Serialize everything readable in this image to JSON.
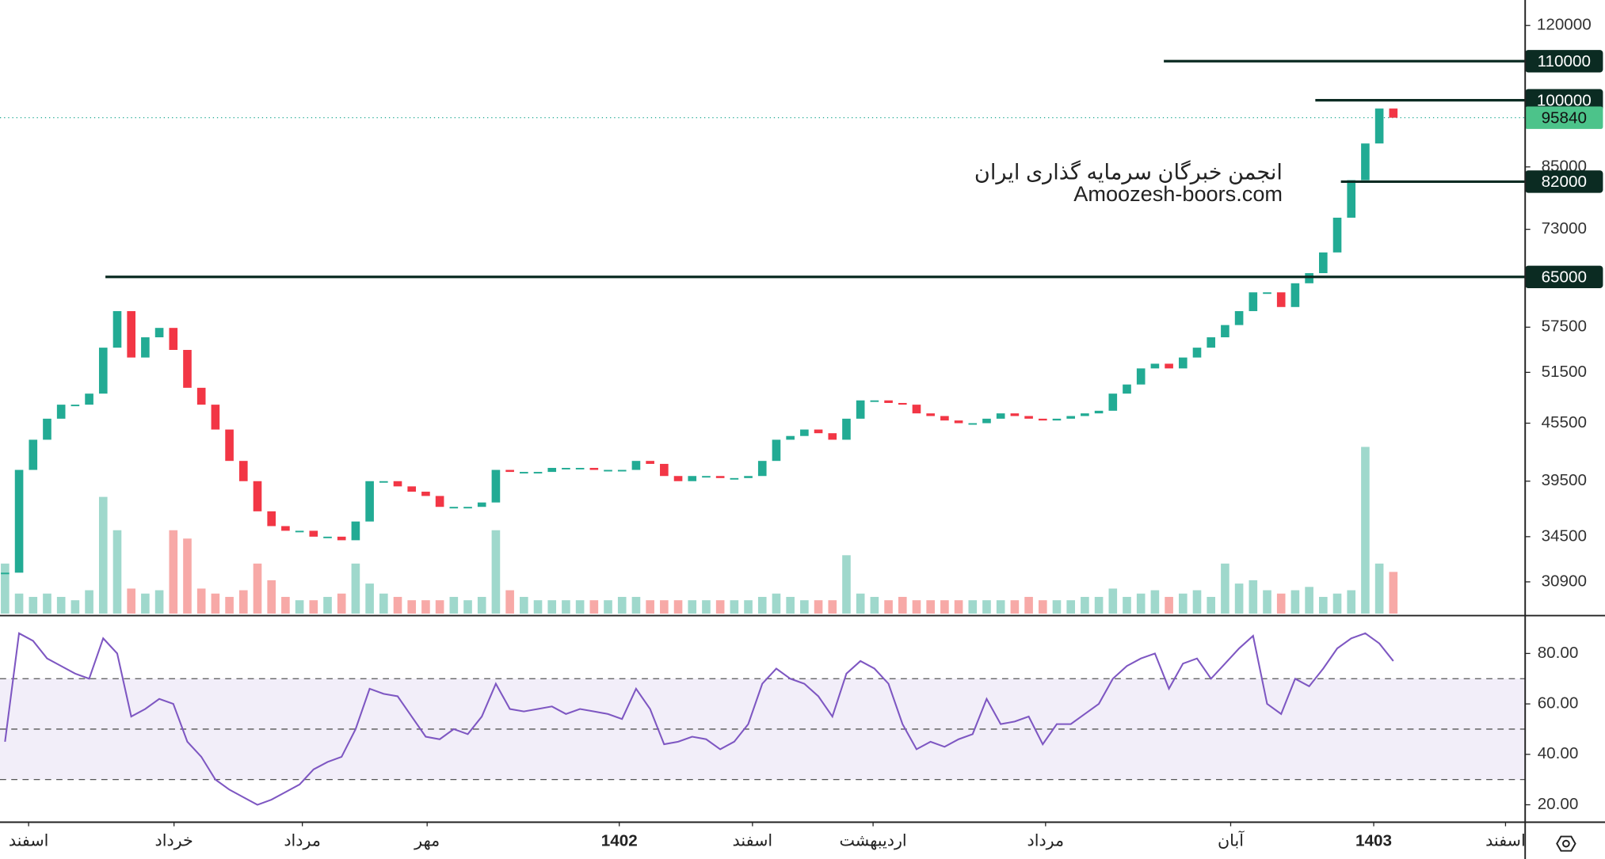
{
  "chart_data": {
    "type": "candlestick",
    "annotations": [
      "انجمن خبرگان سرمایه گذاری ایران",
      "Amoozesh-boors.com"
    ],
    "close": [
      31600,
      40600,
      43700,
      46000,
      47600,
      47600,
      48900,
      54700,
      59800,
      53400,
      56100,
      57400,
      54400,
      49600,
      47600,
      44800,
      41500,
      39500,
      36700,
      35400,
      35000,
      35000,
      34500,
      34500,
      34200,
      35800,
      39500,
      39500,
      39000,
      38500,
      38100,
      37100,
      37100,
      37100,
      37500,
      40600,
      40400,
      40400,
      40400,
      40800,
      40800,
      40800,
      40600,
      40600,
      40600,
      41500,
      41200,
      40000,
      39500,
      40000,
      40000,
      39800,
      39800,
      40000,
      41500,
      43700,
      44100,
      44800,
      44400,
      43700,
      46000,
      48100,
      48100,
      47800,
      47600,
      46600,
      46300,
      45800,
      45500,
      45500,
      46000,
      46600,
      46300,
      46000,
      45800,
      46000,
      46300,
      46600,
      46900,
      48900,
      50000,
      52000,
      52600,
      52000,
      53400,
      54700,
      56100,
      57800,
      59800,
      62600,
      62600,
      60400,
      64000,
      65600,
      69000,
      75100,
      82300,
      90000,
      98000,
      95840
    ],
    "volume": [
      30,
      12,
      10,
      12,
      10,
      8,
      14,
      70,
      50,
      15,
      12,
      14,
      50,
      45,
      15,
      12,
      10,
      14,
      30,
      20,
      10,
      8,
      8,
      10,
      12,
      30,
      18,
      12,
      10,
      8,
      8,
      8,
      10,
      8,
      10,
      50,
      14,
      10,
      8,
      8,
      8,
      8,
      8,
      8,
      10,
      10,
      8,
      8,
      8,
      8,
      8,
      8,
      8,
      8,
      10,
      12,
      10,
      8,
      8,
      8,
      35,
      12,
      10,
      8,
      10,
      8,
      8,
      8,
      8,
      8,
      8,
      8,
      8,
      10,
      8,
      8,
      8,
      10,
      10,
      15,
      10,
      12,
      14,
      10,
      12,
      14,
      10,
      30,
      18,
      20,
      14,
      12,
      14,
      16,
      10,
      12,
      14,
      100,
      30,
      25
    ],
    "rsi": [
      45,
      88,
      85,
      78,
      75,
      72,
      70,
      86,
      80,
      55,
      58,
      62,
      60,
      45,
      39,
      30,
      26,
      23,
      20,
      22,
      25,
      28,
      34,
      37,
      39,
      50,
      66,
      64,
      63,
      55,
      47,
      46,
      50,
      48,
      55,
      68,
      58,
      57,
      58,
      59,
      56,
      58,
      57,
      56,
      54,
      66,
      58,
      44,
      45,
      47,
      46,
      42,
      45,
      52,
      68,
      74,
      70,
      68,
      63,
      55,
      72,
      77,
      74,
      68,
      52,
      42,
      45,
      43,
      46,
      48,
      62,
      52,
      53,
      55,
      44,
      52,
      52,
      56,
      60,
      70,
      75,
      78,
      80,
      66,
      76,
      78,
      70,
      76,
      82,
      87,
      60,
      56,
      70,
      67,
      74,
      82,
      86,
      88,
      84,
      77
    ],
    "log_scale": true,
    "ylim": [
      28600,
      127700
    ],
    "yticks": [
      120000,
      85000,
      73000,
      57500,
      51500,
      45500,
      39500,
      34500,
      30900
    ],
    "levels": [
      110000,
      100000,
      82000,
      65000
    ],
    "xlim": [
      -0.36,
      108.4
    ],
    "xticks": [
      {
        "value": 1.68,
        "label": "اسفند"
      },
      {
        "value": 12.05,
        "label": "خرداد"
      },
      {
        "value": 21.2,
        "label": "مرداد"
      },
      {
        "value": 30.1,
        "label": "مهر"
      },
      {
        "value": 43.8,
        "label": "1402"
      },
      {
        "value": 53.3,
        "label": "اسفند"
      },
      {
        "value": 61.9,
        "label": "اردیبهشت"
      },
      {
        "value": 74.2,
        "label": "مرداد"
      },
      {
        "value": 87.4,
        "label": "آبان"
      },
      {
        "value": 97.6,
        "label": "1403"
      },
      {
        "value": 107,
        "label": "اسفند"
      }
    ],
    "rsi_ylim": [
      13.5,
      94.2
    ],
    "rsi_yticks": [
      {
        "value": 80,
        "label": "80.00"
      },
      {
        "value": 60,
        "label": "60.00"
      },
      {
        "value": 40,
        "label": "40.00"
      },
      {
        "value": 20,
        "label": "20.00"
      }
    ],
    "rsi_bands": [
      70,
      50,
      30
    ],
    "colors": {
      "up": "#22ab94",
      "down": "#f23645",
      "up_volume": "#9fd8cc",
      "down_volume": "#f7a9a7",
      "rsi": "#7e57c2",
      "level": "#0b2b22",
      "last": "#4cc38a"
    }
  }
}
